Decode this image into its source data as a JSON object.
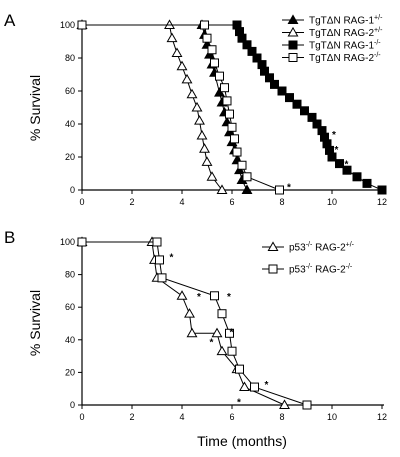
{
  "figure": {
    "xlabel": "Time (months)"
  },
  "chart_data": [
    {
      "panel": "A",
      "type": "line",
      "ylabel": "% Survival",
      "xlim": [
        0,
        12
      ],
      "ylim": [
        0,
        100
      ],
      "x_ticks": [
        0,
        2,
        4,
        6,
        8,
        10,
        12
      ],
      "y_ticks": [
        0,
        20,
        40,
        60,
        80,
        100
      ],
      "legend_position": "top-right",
      "series": [
        {
          "label_main": "TgTΔN RAG-1",
          "label_sup": "+/-",
          "marker": "triangle",
          "filled": true,
          "points": [
            [
              0,
              100
            ],
            [
              4.8,
              100
            ],
            [
              4.9,
              94
            ],
            [
              5.0,
              88
            ],
            [
              5.1,
              82
            ],
            [
              5.2,
              76
            ],
            [
              5.3,
              71
            ],
            [
              5.5,
              59
            ],
            [
              5.6,
              53
            ],
            [
              5.7,
              47
            ],
            [
              5.8,
              41
            ],
            [
              5.9,
              35
            ],
            [
              6.0,
              29
            ],
            [
              6.1,
              24
            ],
            [
              6.2,
              18
            ],
            [
              6.3,
              12
            ],
            [
              6.4,
              6
            ],
            [
              6.6,
              0
            ]
          ]
        },
        {
          "label_main": "TgTΔN RAG-2",
          "label_sup": "+/-",
          "marker": "triangle",
          "filled": false,
          "points": [
            [
              0,
              100
            ],
            [
              3.5,
              100
            ],
            [
              3.6,
              92
            ],
            [
              3.8,
              83
            ],
            [
              4.0,
              75
            ],
            [
              4.2,
              67
            ],
            [
              4.4,
              58
            ],
            [
              4.6,
              50
            ],
            [
              4.7,
              42
            ],
            [
              4.8,
              33
            ],
            [
              4.9,
              25
            ],
            [
              5.0,
              17
            ],
            [
              5.2,
              8
            ],
            [
              5.6,
              0
            ]
          ]
        },
        {
          "label_main": "TgTΔN RAG-1",
          "label_sup": "-/-",
          "marker": "square",
          "filled": true,
          "points": [
            [
              0,
              100
            ],
            [
              6.2,
              100
            ],
            [
              6.3,
              96
            ],
            [
              6.4,
              92
            ],
            [
              6.6,
              88
            ],
            [
              6.8,
              84
            ],
            [
              7.0,
              80
            ],
            [
              7.2,
              76
            ],
            [
              7.3,
              72
            ],
            [
              7.5,
              68
            ],
            [
              7.7,
              64
            ],
            [
              8.0,
              60
            ],
            [
              8.3,
              56
            ],
            [
              8.6,
              52
            ],
            [
              8.9,
              48
            ],
            [
              9.2,
              44
            ],
            [
              9.4,
              40
            ],
            [
              9.6,
              36
            ],
            [
              9.7,
              32
            ],
            [
              9.8,
              28
            ],
            [
              9.9,
              24
            ],
            [
              10.0,
              20
            ],
            [
              10.3,
              16
            ],
            [
              10.6,
              12
            ],
            [
              11.0,
              8
            ],
            [
              11.4,
              4
            ],
            [
              12.0,
              0
            ]
          ]
        },
        {
          "label_main": "TgTΔN RAG-2",
          "label_sup": "-/-",
          "marker": "square",
          "filled": false,
          "points": [
            [
              0,
              100
            ],
            [
              4.9,
              100
            ],
            [
              5.0,
              92
            ],
            [
              5.2,
              85
            ],
            [
              5.3,
              77
            ],
            [
              5.5,
              69
            ],
            [
              5.7,
              62
            ],
            [
              5.8,
              54
            ],
            [
              5.9,
              46
            ],
            [
              6.0,
              38
            ],
            [
              6.1,
              31
            ],
            [
              6.2,
              23
            ],
            [
              6.4,
              15
            ],
            [
              6.6,
              8
            ],
            [
              7.9,
              0
            ]
          ]
        }
      ],
      "annotations": [
        {
          "text": "*",
          "x": 5.1,
          "y": 81
        },
        {
          "text": "*",
          "x": 8.2,
          "y": 2
        },
        {
          "text": "*",
          "x": 10.0,
          "y": 34
        },
        {
          "text": "*",
          "x": 10.1,
          "y": 25
        },
        {
          "text": "*",
          "x": 10.5,
          "y": 16
        }
      ]
    },
    {
      "panel": "B",
      "type": "line",
      "ylabel": "% Survival",
      "xlim": [
        0,
        12
      ],
      "ylim": [
        0,
        100
      ],
      "x_ticks": [
        0,
        2,
        4,
        6,
        8,
        10,
        12
      ],
      "y_ticks": [
        0,
        20,
        40,
        60,
        80,
        100
      ],
      "legend_position": "top-right",
      "series": [
        {
          "label_pre": "p53",
          "label_pre_sup": "-/-",
          "label_main": " RAG-2",
          "label_sup": "+/-",
          "marker": "triangle",
          "filled": false,
          "points": [
            [
              0,
              100
            ],
            [
              2.8,
              100
            ],
            [
              2.9,
              89
            ],
            [
              3.0,
              78
            ],
            [
              4.0,
              67
            ],
            [
              4.3,
              56
            ],
            [
              4.4,
              44
            ],
            [
              5.4,
              44
            ],
            [
              5.6,
              33
            ],
            [
              6.2,
              22
            ],
            [
              6.5,
              11
            ],
            [
              8.1,
              0
            ]
          ]
        },
        {
          "label_pre": "p53",
          "label_pre_sup": "-/-",
          "label_main": " RAG-2",
          "label_sup": "-/-",
          "marker": "square",
          "filled": false,
          "points": [
            [
              0,
              100
            ],
            [
              3.0,
              100
            ],
            [
              3.1,
              89
            ],
            [
              3.2,
              78
            ],
            [
              5.3,
              67
            ],
            [
              5.6,
              56
            ],
            [
              5.9,
              44
            ],
            [
              6.0,
              33
            ],
            [
              6.3,
              22
            ],
            [
              6.9,
              11
            ],
            [
              9.0,
              0
            ]
          ]
        }
      ],
      "annotations": [
        {
          "text": "*",
          "x": 3.5,
          "y": 91
        },
        {
          "text": "*",
          "x": 4.6,
          "y": 67
        },
        {
          "text": "*",
          "x": 5.8,
          "y": 67
        },
        {
          "text": "*",
          "x": 5.9,
          "y": 45
        },
        {
          "text": "*",
          "x": 5.1,
          "y": 39
        },
        {
          "text": "*",
          "x": 6.2,
          "y": 2
        },
        {
          "text": "*",
          "x": 7.3,
          "y": 13
        }
      ]
    }
  ]
}
